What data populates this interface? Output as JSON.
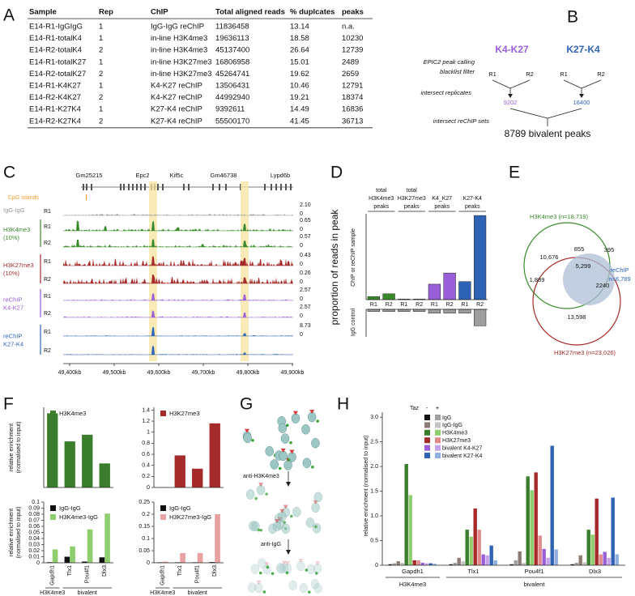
{
  "panel_labels": [
    "A",
    "B",
    "C",
    "D",
    "E",
    "F",
    "G",
    "H"
  ],
  "table": {
    "headers": [
      "Sample",
      "Rep",
      "ChIP",
      "Total aligned reads",
      "% duplcates",
      "peaks"
    ],
    "rows": [
      [
        "E14-R1-IgGIgG",
        "1",
        "IgG-IgG reChIP",
        "11836458",
        "13.14",
        "n.a."
      ],
      [
        "E14-R1-totalK4",
        "1",
        "in-line H3K4me3",
        "19636113",
        "18.58",
        "10230"
      ],
      [
        "E14-R2-totalK4",
        "2",
        "in-line H3K4me3",
        "45137400",
        "26.64",
        "12739"
      ],
      [
        "E14-R1-totalK27",
        "1",
        "in-line H3K27me3",
        "16806958",
        "15.01",
        "2489"
      ],
      [
        "E14-R2-totalK27",
        "2",
        "in-line H3K27me3",
        "45264741",
        "19.62",
        "2659"
      ],
      [
        "E14-R1-K4K27",
        "1",
        "K4-K27 reChIP",
        "13506431",
        "10.46",
        "12791"
      ],
      [
        "E14-R2-K4K27",
        "2",
        "K4-K27 reChIP",
        "44992940",
        "19.21",
        "18374"
      ],
      [
        "E14-R1-K27K4",
        "1",
        "K27-K4 reChIP",
        "9392611",
        "14.49",
        "16836"
      ],
      [
        "E14-R2-K27K4",
        "2",
        "K27-K4 reChIP",
        "55500170",
        "41.45",
        "36713"
      ]
    ]
  },
  "diagram_b": {
    "steps": [
      "EPIC2 peak calling",
      "blacklist filter",
      "intersect replicates",
      "intersect reChIP sets"
    ],
    "sets": [
      {
        "name": "K4-K27",
        "color": "#9a5fd8",
        "reps": [
          "R1",
          "R2"
        ],
        "count": "9202"
      },
      {
        "name": "K27-K4",
        "color": "#2f63b5",
        "reps": [
          "R1",
          "R2"
        ],
        "count": "16400"
      }
    ],
    "result": "8789 bivalent peaks"
  },
  "genome_browser": {
    "genes": [
      "Gm25215",
      "Epc2",
      "Kif5c",
      "Gm46738",
      "Lypd6b"
    ],
    "cpg_label": "CpG islands",
    "cpg_color": "#f39c34",
    "groups": [
      {
        "label": [
          "IgG-IgG"
        ],
        "color": "#999999",
        "tracks": [
          {
            "rep": "R1",
            "max": "2.10",
            "min": "0"
          }
        ]
      },
      {
        "label": [
          "H3K4me3",
          "(10%)"
        ],
        "color": "#3a8a2c",
        "tracks": [
          {
            "rep": "R1",
            "max": "0.65",
            "min": "0"
          },
          {
            "rep": "R2",
            "max": "0.57",
            "min": "0"
          }
        ]
      },
      {
        "label": [
          "H3K27me3",
          "(10%)"
        ],
        "color": "#a52a2a",
        "tracks": [
          {
            "rep": "R1",
            "max": "0.43",
            "min": "0"
          },
          {
            "rep": "R2",
            "max": "0.26",
            "min": "0"
          }
        ]
      },
      {
        "label": [
          "reChIP",
          "K4-K27"
        ],
        "color": "#9a5fd8",
        "tracks": [
          {
            "rep": "R1",
            "max": "2.57",
            "min": "0"
          },
          {
            "rep": "R2",
            "max": "2.57",
            "min": "0"
          }
        ]
      },
      {
        "label": [
          "reChIP",
          "K27-K4"
        ],
        "color": "#2f63b5",
        "tracks": [
          {
            "rep": "R1",
            "max": "8.73",
            "min": "0"
          },
          {
            "rep": "R2"
          }
        ]
      }
    ],
    "xticks": [
      "49,400kb",
      "49,500kb",
      "49,600kb",
      "49,700kb",
      "49,800kb",
      "49,900kb"
    ]
  },
  "venn": {
    "sets": [
      {
        "label": [
          "H3K4me3 (n=18,719)"
        ],
        "color": "#3a8a2c"
      },
      {
        "label": [
          "H3K27me3 (n=23,026)"
        ],
        "color": "#a52a2a"
      },
      {
        "label": [
          "reChIP",
          "n=8,789"
        ],
        "color": "#2f63b5"
      }
    ],
    "regions": [
      "10,676",
      "855",
      "395",
      "5,299",
      "1,889",
      "2240",
      "13,598"
    ]
  },
  "schematic_g": {
    "steps": [
      "anti-H3K4me3",
      "anti-IgG"
    ]
  },
  "chart_data": [
    {
      "type": "bar",
      "ylabel": "proportion of reads in peak",
      "upper_label": "ChIP or reChIP sample",
      "lower_label": "IgG control",
      "groups": [
        [
          "total",
          "H3K4me3",
          "peaks"
        ],
        [
          "total",
          "H3K27me3",
          "peaks"
        ],
        [
          "K4_K27",
          "peaks"
        ],
        [
          "K27-K4",
          "peaks"
        ]
      ],
      "categories": [
        "R1",
        "R2",
        "R1",
        "R2",
        "R1",
        "R2",
        "R1",
        "R2"
      ],
      "colors": [
        "#3a8a2c",
        "#3a8a2c",
        "#a52a2a",
        "#a52a2a",
        "#9a5fd8",
        "#9a5fd8",
        "#2f63b5",
        "#2f63b5"
      ],
      "values": [
        0.018,
        0.034,
        0.003,
        0.003,
        0.09,
        0.155,
        0.105,
        0.49
      ],
      "igg_values": [
        0.004,
        0.004,
        0.004,
        0.004,
        0.007,
        0.007,
        0.007,
        0.03
      ],
      "igg_color": "#9e9e9e",
      "ylim": [
        0,
        0.5
      ],
      "y2lim": [
        0,
        0.05
      ]
    },
    {
      "type": "bar",
      "ylabel": [
        "relative enrichment",
        "(normalised to input)"
      ],
      "series": [
        {
          "name": "H3K4me3",
          "color": "#3a7d2c",
          "values": [
            2.22,
            1.38,
            1.58,
            0.72
          ]
        }
      ],
      "ylim": [
        0,
        2.4
      ]
    },
    {
      "type": "bar",
      "series": [
        {
          "name": "H3K27me3",
          "color": "#a52a2a",
          "values": [
            0.005,
            0.58,
            0.34,
            1.16
          ]
        }
      ],
      "ylim": [
        0,
        1.45
      ],
      "yticks": [
        0,
        0.2,
        0.4,
        0.6,
        0.8,
        1,
        1.2,
        1.4
      ]
    },
    {
      "type": "bar",
      "ylabel": [
        "relative enrichment",
        "(normalised to input)"
      ],
      "categories": [
        "Gapdh1",
        "Tlx1",
        "Pou4f1",
        "Dlx3"
      ],
      "group_labels": [
        "H3K4me3",
        "bivalent"
      ],
      "series": [
        {
          "name": "IgG-IgG",
          "color": "#111111",
          "values": [
            0.001,
            0.01,
            0.002,
            0.009
          ]
        },
        {
          "name": "H3K4me3-IgG",
          "color": "#8fce6e",
          "values": [
            0.022,
            0.027,
            0.055,
            0.081
          ]
        }
      ],
      "ylim": [
        0,
        0.1
      ],
      "yticks": [
        0,
        0.01,
        0.02,
        0.03,
        0.04,
        0.05,
        0.06,
        0.07,
        0.08,
        0.09,
        0.1
      ]
    },
    {
      "type": "bar",
      "categories": [
        "Gapdh1",
        "Tlx1",
        "Pou4f1",
        "Dlx3"
      ],
      "group_labels": [
        "H3K4me3",
        "bivalent"
      ],
      "series": [
        {
          "name": "IgG-IgG",
          "color": "#111111",
          "values": [
            0.002,
            0.002,
            0.002,
            0.003
          ]
        },
        {
          "name": "H3K27me3-IgG",
          "color": "#e8a0a0",
          "values": [
            0.005,
            0.04,
            0.04,
            0.2
          ]
        }
      ],
      "ylim": [
        0,
        0.25
      ],
      "yticks": [
        0,
        0.05,
        0.1,
        0.15,
        0.2,
        0.25
      ]
    },
    {
      "type": "grouped_bar",
      "ylabel": "relative enrichment (normalised to input)",
      "legend_title": "Taz",
      "legend_levels": [
        "-",
        "+"
      ],
      "categories": [
        "Gapdh1",
        "Tlx1",
        "Pou4f1",
        "Dlx3"
      ],
      "group_labels": [
        "H3K4me3",
        "bivalent"
      ],
      "series": [
        {
          "name": "IgG",
          "colors": [
            "#111111",
            "#a0a0a0"
          ],
          "values": [
            [
              0.02,
              0.02,
              0.02,
              0.02
            ],
            [
              0.04,
              0.05,
              0.1,
              0.05
            ]
          ]
        },
        {
          "name": "IgG-IgG",
          "colors": [
            "#8c7b73",
            "#c4c4c4"
          ],
          "values": [
            [
              0.08,
              0.15,
              0.28,
              0.2
            ],
            [
              0.05,
              0.08,
              0.05,
              0.06
            ]
          ]
        },
        {
          "name": "H3K4me3",
          "colors": [
            "#3a7d2c",
            "#8fce6e"
          ],
          "values": [
            [
              2.05,
              0.72,
              1.8,
              0.72
            ],
            [
              1.42,
              0.58,
              1.52,
              0.62
            ]
          ]
        },
        {
          "name": "H3K27me3",
          "colors": [
            "#a52a2a",
            "#e08a8a"
          ],
          "values": [
            [
              0.1,
              1.15,
              1.88,
              1.35
            ],
            [
              0.1,
              0.72,
              0.6,
              0.22
            ]
          ]
        },
        {
          "name": "bivalent K4-K27",
          "colors": [
            "#9a5fd8",
            "#c6a4ec"
          ],
          "values": [
            [
              0.05,
              0.22,
              0.33,
              0.27
            ],
            [
              0.04,
              0.2,
              0.15,
              0.15
            ]
          ]
        },
        {
          "name": "bivalent K27-K4",
          "colors": [
            "#2f63b5",
            "#8fb0e0"
          ],
          "values": [
            [
              0.04,
              0.4,
              2.42,
              1.37
            ],
            [
              0.03,
              0.1,
              0.32,
              0.22
            ]
          ]
        }
      ],
      "ylim": [
        0,
        3.1
      ],
      "yticks": [
        0,
        0.5,
        {
          "value": 1,
          "label": "1.0"
        },
        1.5,
        {
          "value": 2,
          "label": "2.0"
        },
        2.5,
        {
          "value": 3,
          "label": "3.0"
        }
      ]
    }
  ]
}
